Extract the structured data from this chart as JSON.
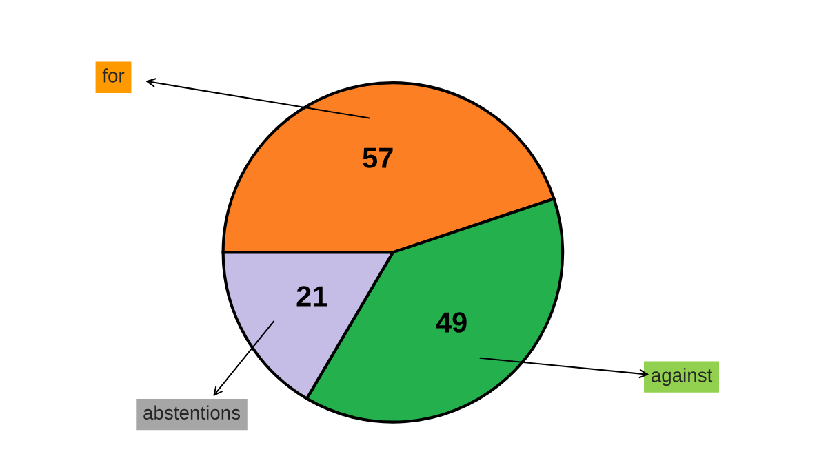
{
  "chart_data": {
    "type": "pie",
    "categories": [
      "for",
      "against",
      "abstentions"
    ],
    "values": [
      57,
      49,
      21
    ],
    "colors": [
      "#fd7f23",
      "#24b04c",
      "#c5bde6"
    ],
    "data_labels": true
  }
}
